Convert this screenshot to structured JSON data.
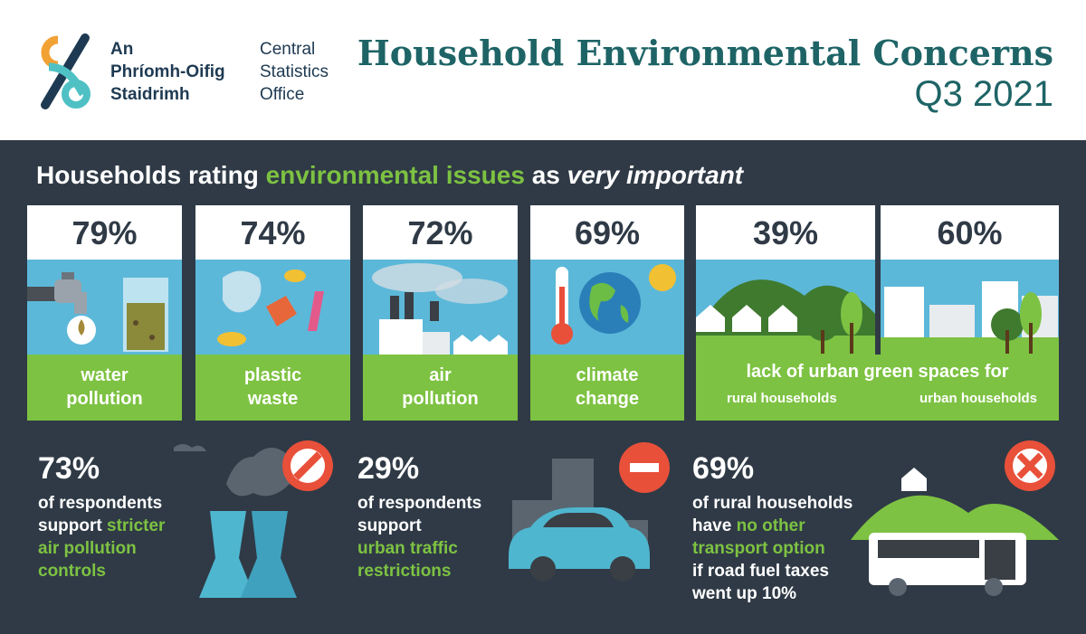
{
  "header": {
    "logo_irish": [
      "An",
      "Phríomh-Oifig",
      "Staidrimh"
    ],
    "logo_english": [
      "Central",
      "Statistics",
      "Office"
    ],
    "title": "Household Environmental Concerns",
    "subtitle": "Q3 2021"
  },
  "heading": {
    "part1": "Households rating ",
    "part2": "environmental issues",
    "part3": " as ",
    "part4": "very important"
  },
  "cards": [
    {
      "pct": "79%",
      "label1": "water",
      "label2": "pollution"
    },
    {
      "pct": "74%",
      "label1": "plastic",
      "label2": "waste"
    },
    {
      "pct": "72%",
      "label1": "air",
      "label2": "pollution"
    },
    {
      "pct": "69%",
      "label1": "climate",
      "label2": "change"
    },
    {
      "pct": "39%"
    },
    {
      "pct": "60%"
    }
  ],
  "green_spaces": {
    "label": "lack of urban green spaces for",
    "rural": "rural households",
    "urban": "urban households"
  },
  "stats": [
    {
      "value": "73%",
      "line1": "of respondents",
      "line2a": "support ",
      "line2b": "stricter",
      "line3": "air pollution",
      "line4": "controls"
    },
    {
      "value": "29%",
      "line1": "of respondents",
      "line2": "support",
      "line3": "urban traffic",
      "line4": "restrictions"
    },
    {
      "value": "69%",
      "line1": "of rural households",
      "line2a": "have ",
      "line2b": "no other",
      "line3": "transport option",
      "line4": "if road fuel taxes",
      "line5": "went up 10%"
    }
  ],
  "colors": {
    "panel": "#2f3a46",
    "green": "#7dc242",
    "sky": "#5cb8d9",
    "title": "#1e6466",
    "alert": "#e8503a"
  },
  "icons": [
    "cso-logo-icon",
    "tap-icon",
    "plastic-icon",
    "factory-icon",
    "earth-icon",
    "countryside-icon",
    "city-icon",
    "cooling-tower-icon",
    "car-icon",
    "bus-icon",
    "no-entry-icon",
    "prohibited-icon",
    "cross-icon"
  ]
}
